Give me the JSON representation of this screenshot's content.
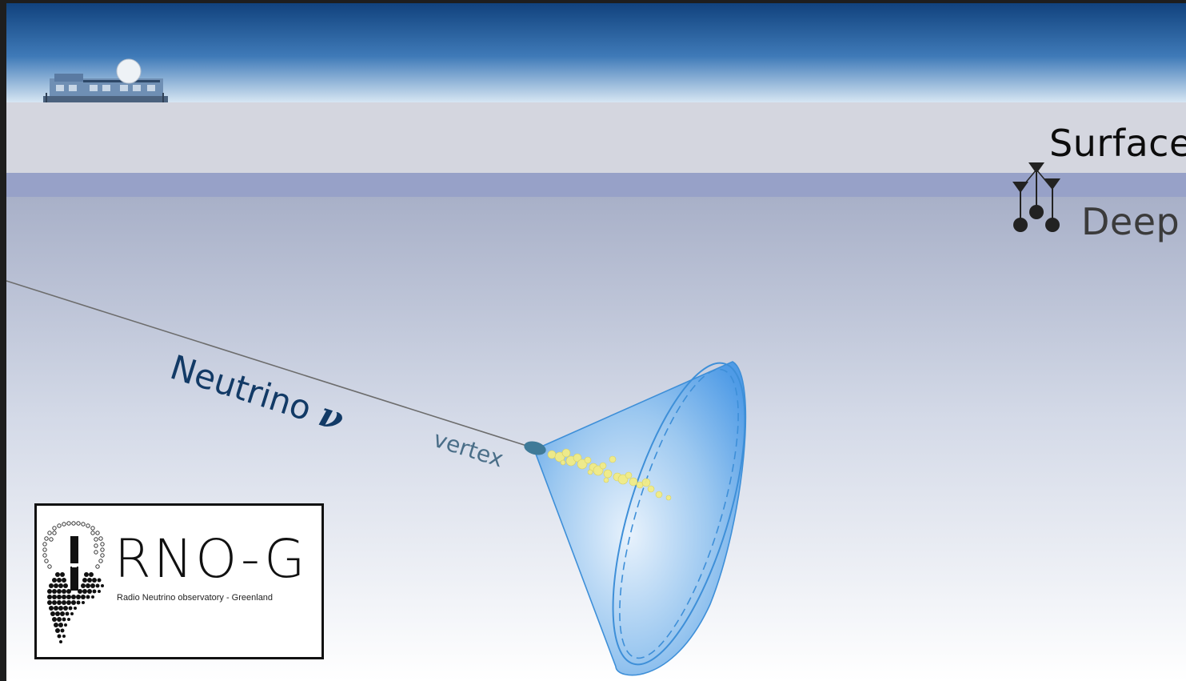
{
  "labels": {
    "surface": "Surface",
    "deep": "Deep",
    "neutrino": "Neutrino",
    "neutrino_symbol": "ν",
    "vertex": "vertex"
  },
  "logo": {
    "title": "RNO-G",
    "subtitle": "Radio Neutrino observatory - Greenland"
  },
  "colors": {
    "sky_top": "#0e3f7a",
    "sky_bottom": "#d7e6f3",
    "snow": "#d4d6df",
    "firn_band": "#97a1c8",
    "ice_top": "#a8b0c8",
    "ice_bottom": "#ffffff",
    "cone_fill": "#4f9be6",
    "cone_ring": "#3e8fd8",
    "shower": "#f2ec86",
    "neutrino_text": "#123a66",
    "vertex_text": "#4a6e88"
  },
  "icons": [
    "station-building-icon",
    "radome-icon",
    "antenna-station-icon",
    "rno-g-logo-mark-icon"
  ]
}
